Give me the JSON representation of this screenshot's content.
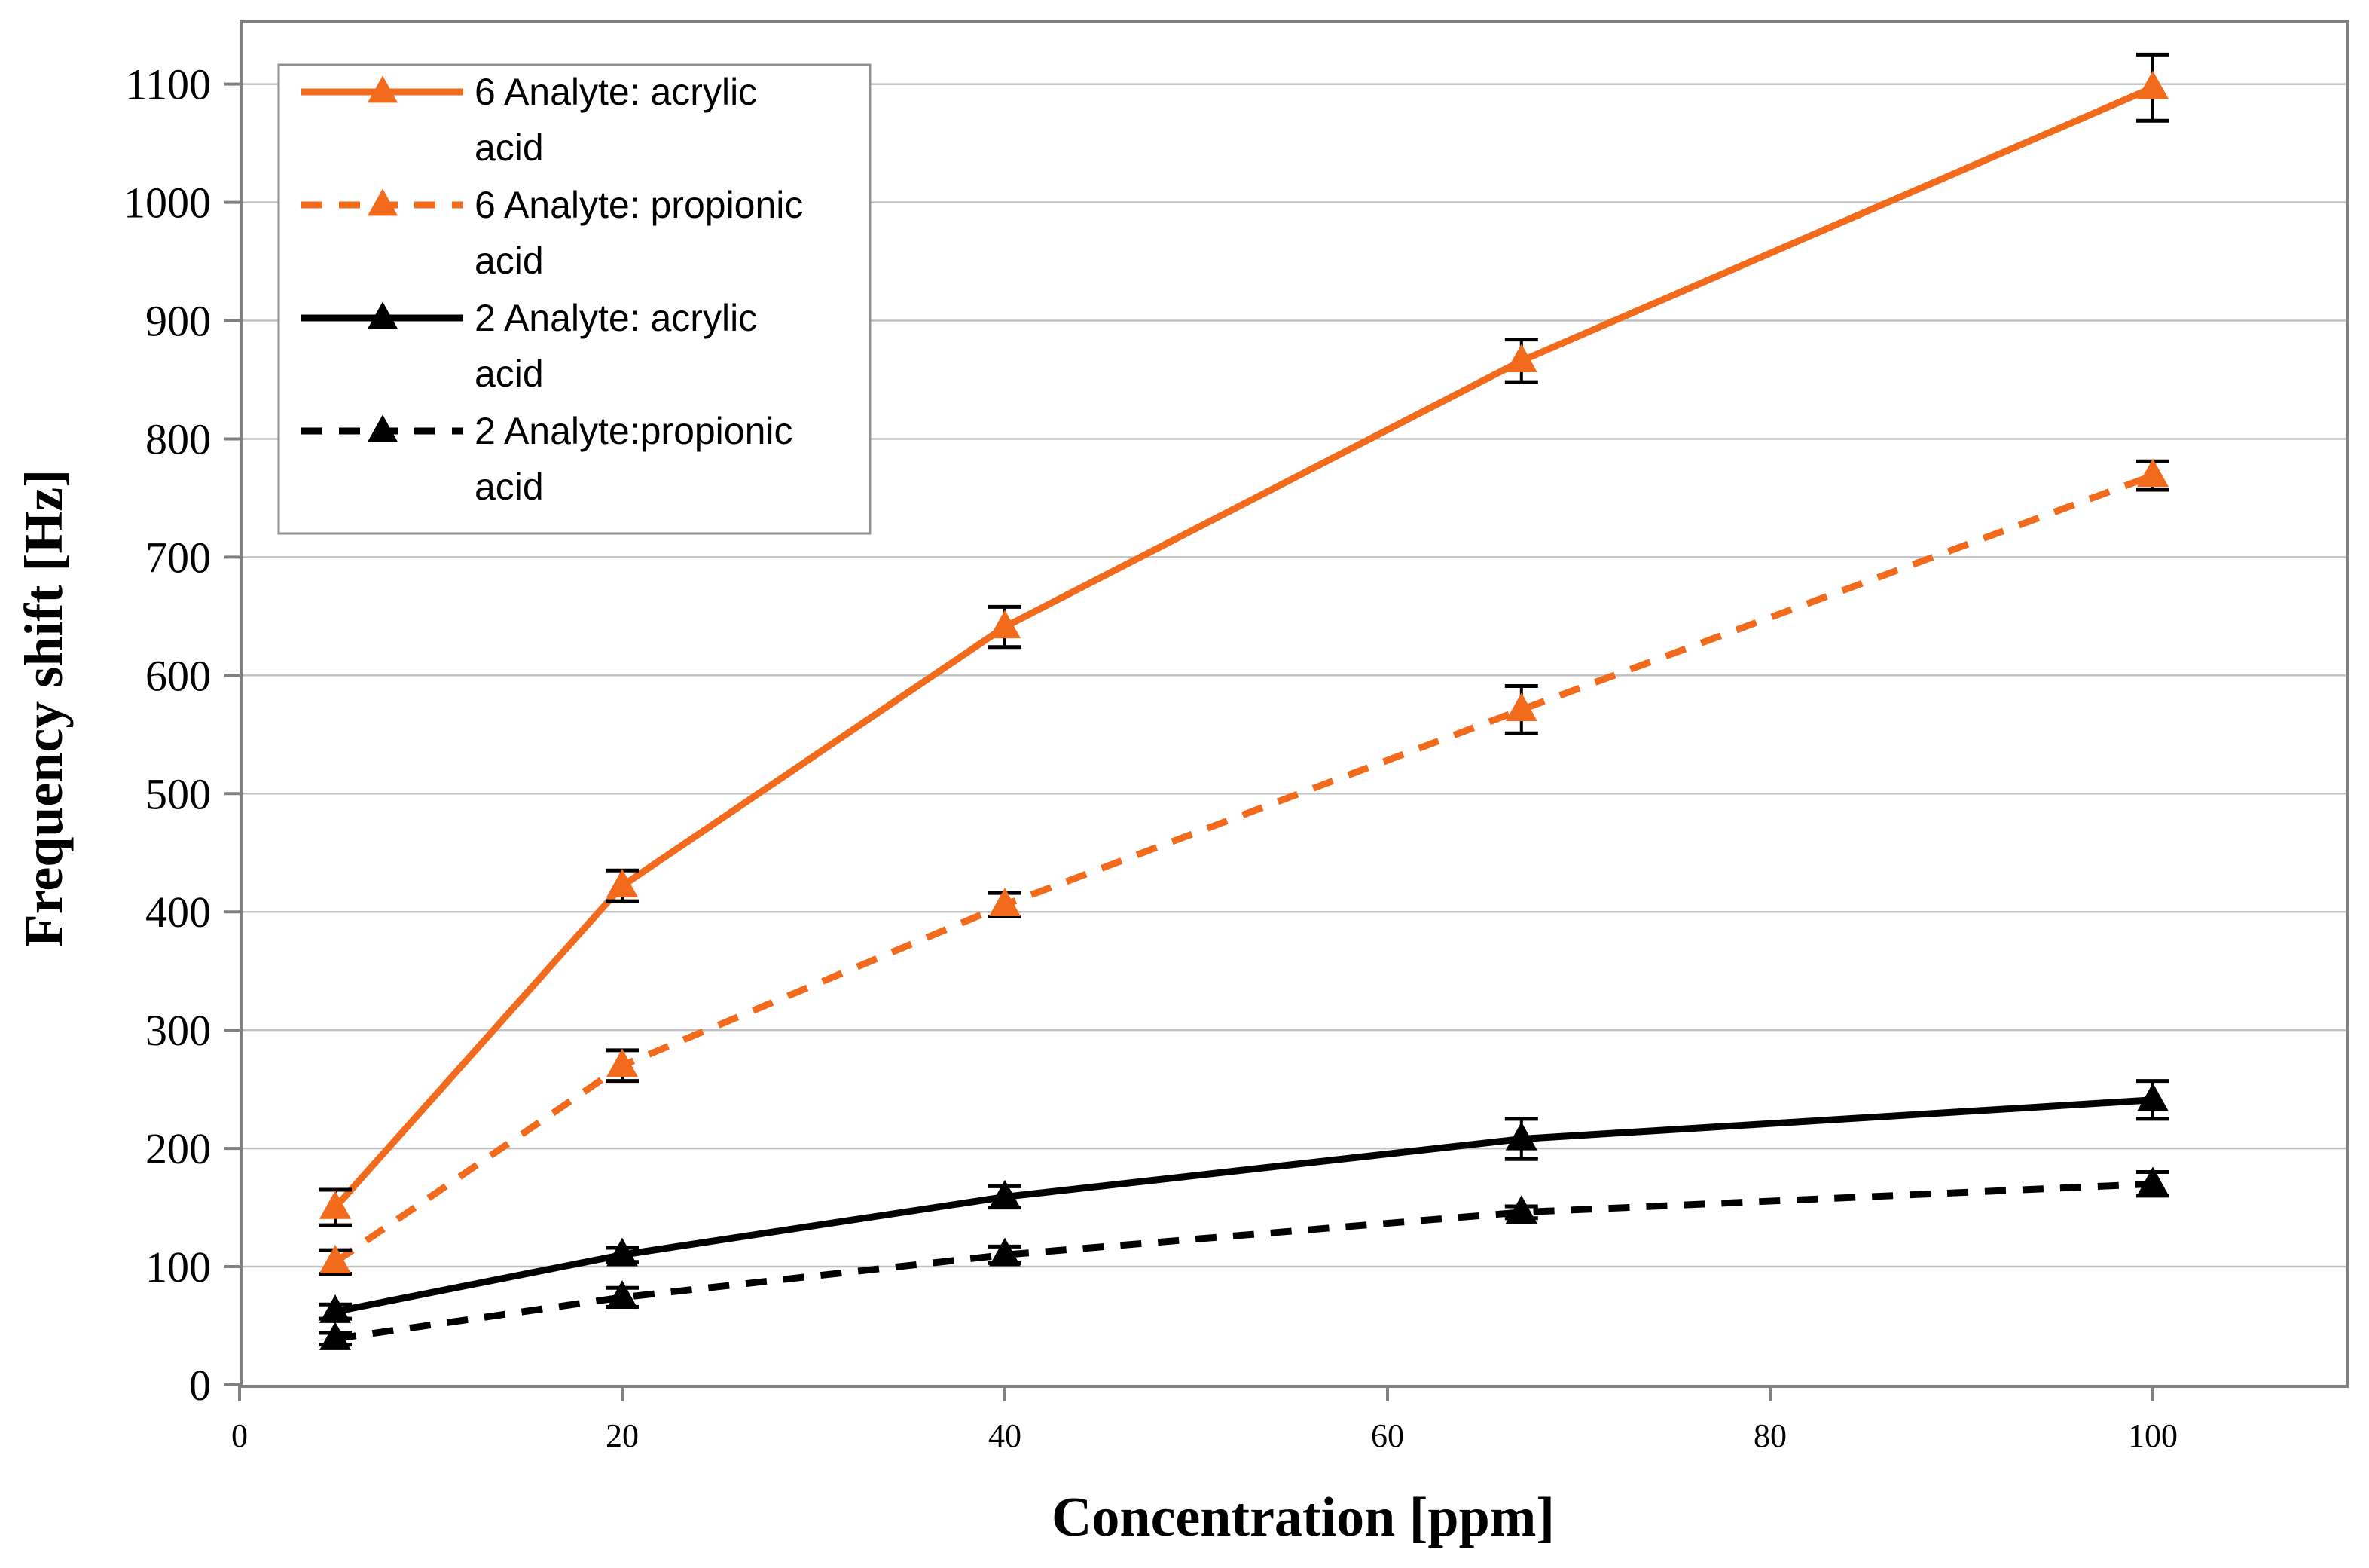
{
  "chart_data": {
    "type": "line",
    "xlabel": "Concentration [ppm]",
    "ylabel": "Frequency shift [Hz]",
    "xlim": [
      0,
      110
    ],
    "ylim": [
      0,
      1150
    ],
    "x_ticks": [
      "0",
      "20",
      "40",
      "60",
      "80",
      "100"
    ],
    "y_ticks": [
      "0",
      "100",
      "200",
      "300",
      "400",
      "500",
      "600",
      "700",
      "800",
      "900",
      "1000",
      "1100"
    ],
    "grid": "horizontal",
    "legend_position": "top-left",
    "series": [
      {
        "name": "6 Analyte: acrylic acid",
        "legend_lines": [
          "6 Analyte: acrylic",
          "acid"
        ],
        "color": "#F26A1B",
        "line_style": "solid",
        "marker": "triangle",
        "x": [
          5,
          20,
          40,
          67,
          100
        ],
        "y": [
          150,
          422,
          641,
          866,
          1097
        ],
        "error": [
          15,
          13,
          17,
          18,
          28
        ]
      },
      {
        "name": "6 Analyte: propionic acid",
        "legend_lines": [
          "6 Analyte: propionic",
          "acid"
        ],
        "color": "#F26A1B",
        "line_style": "dashed",
        "marker": "triangle",
        "x": [
          5,
          20,
          40,
          67,
          100
        ],
        "y": [
          104,
          270,
          406,
          571,
          769
        ],
        "error": [
          10,
          13,
          10,
          20,
          12
        ]
      },
      {
        "name": "2 Analyte: acrylic acid",
        "legend_lines": [
          "2 Analyte: acrylic",
          "acid"
        ],
        "color": "#000000",
        "line_style": "solid",
        "marker": "triangle",
        "x": [
          5,
          20,
          40,
          67,
          100
        ],
        "y": [
          62,
          110,
          159,
          208,
          241
        ],
        "error": [
          6,
          6,
          9,
          17,
          16
        ]
      },
      {
        "name": "2 Analyte:propionic acid",
        "legend_lines": [
          "2 Analyte:propionic",
          "acid"
        ],
        "color": "#000000",
        "line_style": "dashed",
        "marker": "triangle",
        "x": [
          5,
          20,
          40,
          67,
          100
        ],
        "y": [
          39,
          74,
          110,
          146,
          170
        ],
        "error": [
          5,
          8,
          7,
          5,
          10
        ]
      }
    ]
  }
}
